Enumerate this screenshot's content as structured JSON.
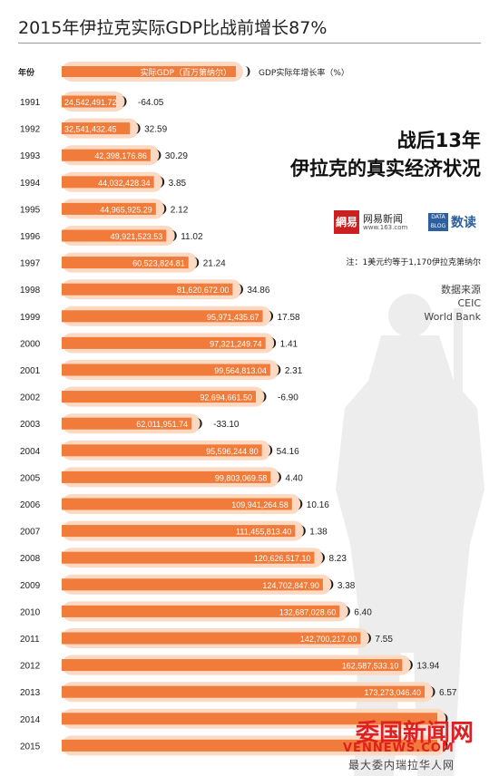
{
  "title": "2015年伊拉克实际GDP比战前增长87%",
  "headline": {
    "line1": "战后13年",
    "line2": "伊拉克的真实经济状况"
  },
  "brand": {
    "logo_text": "網易",
    "name": "网易新闻",
    "url": "www.163.com",
    "box_text": "DATA BLOG",
    "column": "数读"
  },
  "note": "注：1美元约等于1,170伊拉克第纳尔",
  "source": {
    "label": "数据来源",
    "items": [
      "CEIC",
      "World Bank"
    ]
  },
  "watermark": {
    "main": "委国新闻网",
    "url": "VENNEWS.COM",
    "sub": "最大委内瑞拉华人网"
  },
  "colors": {
    "bar": "#f07b3a",
    "bar_shadow": "#fcd9c3",
    "silhouette": "#ededed",
    "brand_red": "#cc1f1f",
    "brand_blue": "#2d5f9e"
  },
  "chart_data": {
    "type": "bar",
    "orientation": "horizontal",
    "header": {
      "year_label": "年份",
      "gdp_label": "实际GDP（百万第纳尔）",
      "growth_label": "GDP实际年增长率（%）"
    },
    "categories": [
      "1991",
      "1992",
      "1993",
      "1994",
      "1995",
      "1996",
      "1997",
      "1998",
      "1999",
      "2000",
      "2001",
      "2002",
      "2003",
      "2004",
      "2005",
      "2006",
      "2007",
      "2008",
      "2009",
      "2010",
      "2011",
      "2012",
      "2013",
      "2014",
      "2015"
    ],
    "series": [
      {
        "name": "实际GDP（百万第纳尔）",
        "values": [
          24542.49172,
          32541.43245,
          42398.17686,
          44032.42834,
          44965.92529,
          49921.52353,
          60523.82481,
          81620.672,
          95971.43567,
          97321.24974,
          99564.81304,
          92694.6615,
          62011.95174,
          95596.2448,
          99803.06958,
          109941.26458,
          111455.8134,
          120626.5171,
          124702.8479,
          132687.0286,
          142700.217,
          162587.5331,
          173273.0464,
          null,
          null
        ],
        "labels": [
          "24,542,491.72",
          "32,541,432.45",
          "42,398,176.86",
          "44,032,428.34",
          "44,965,925.29",
          "49,921,523.53",
          "60,523,824.81",
          "81,620,672.00",
          "95,971,435.67",
          "97,321,249.74",
          "99,564,813.04",
          "92,694,661.50",
          "62,011,951.74",
          "95,596,244.80",
          "99,803,069.58",
          "109,941,264.58",
          "111,455,813.40",
          "120,626,517.10",
          "124,702,847.90",
          "132,687,028.60",
          "142,700,217.00",
          "162,587,533.10",
          "173,273,046.40",
          "",
          ""
        ]
      },
      {
        "name": "GDP实际年增长率（%）",
        "values": [
          -64.05,
          32.59,
          30.29,
          3.85,
          2.12,
          11.02,
          21.24,
          34.86,
          17.58,
          1.41,
          2.31,
          -6.9,
          -33.1,
          54.16,
          4.4,
          10.16,
          1.38,
          8.23,
          3.38,
          6.4,
          7.55,
          13.94,
          6.57,
          null,
          null
        ],
        "labels": [
          "-64.05",
          "32.59",
          "30.29",
          "3.85",
          "2.12",
          "11.02",
          "21.24",
          "34.86",
          "17.58",
          "1.41",
          "2.31",
          "-6.90",
          "-33.10",
          "54.16",
          "4.40",
          "10.16",
          "1.38",
          "8.23",
          "3.38",
          "6.40",
          "7.55",
          "13.94",
          "6.57",
          "",
          ""
        ]
      }
    ],
    "xlim": [
      0,
      180000
    ]
  }
}
